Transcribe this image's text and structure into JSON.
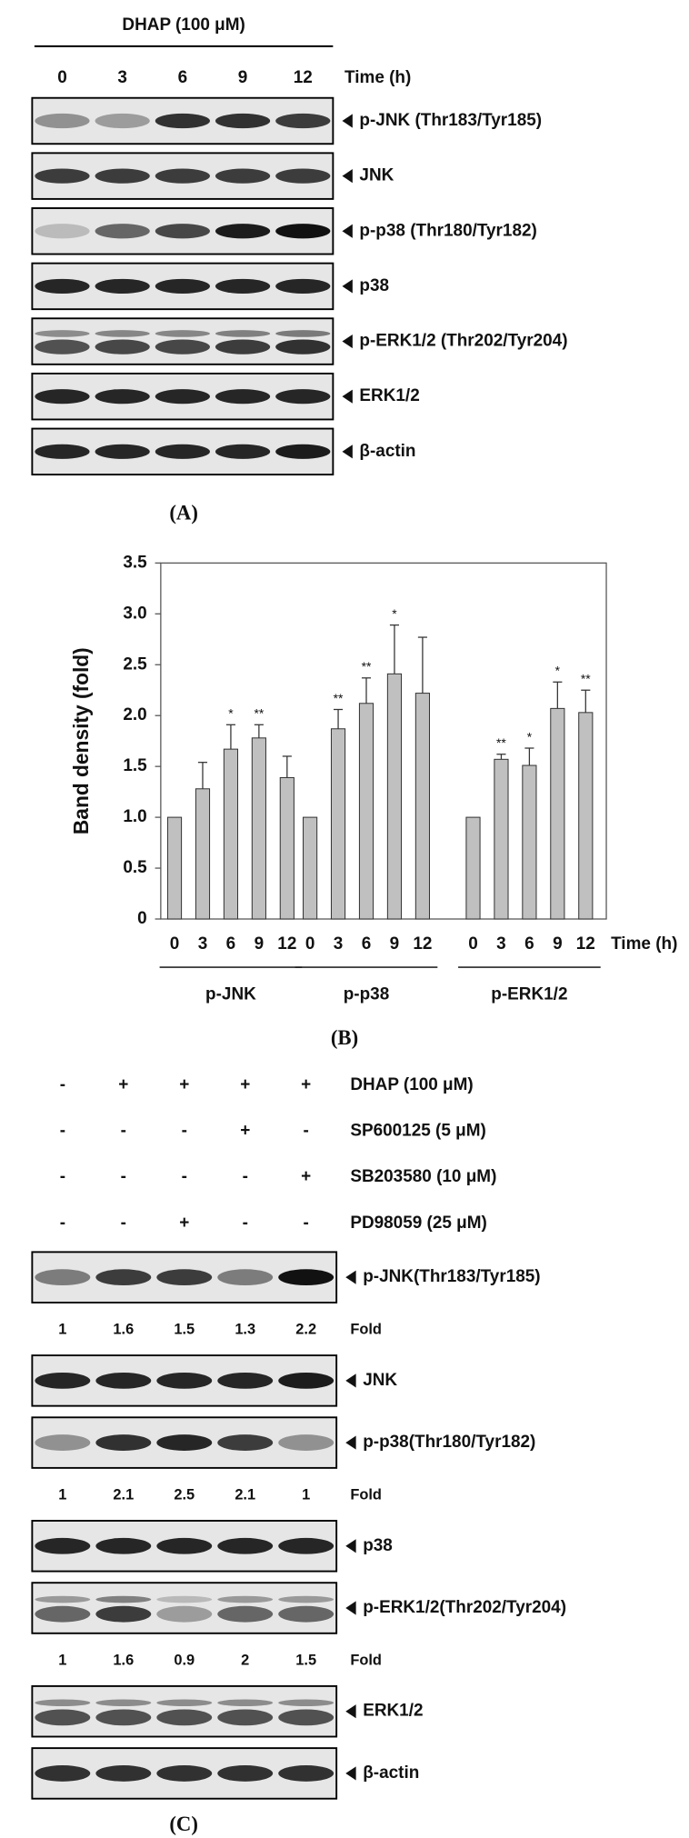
{
  "panel_a": {
    "treatment": "DHAP (100 μM)",
    "lanes": [
      "0",
      "3",
      "6",
      "9",
      "12"
    ],
    "lane_axis_label": "Time (h)",
    "blots": [
      "p-JNK (Thr183/Tyr185)",
      "JNK",
      "p-p38 (Thr180/Tyr182)",
      "p38",
      "p-ERK1/2 (Thr202/Tyr204)",
      "ERK1/2",
      "β-actin"
    ],
    "panel_label": "(A)"
  },
  "chart_data": {
    "type": "bar",
    "ylabel": "Band density (fold)",
    "categories": [
      "0",
      "3",
      "6",
      "9",
      "12"
    ],
    "xlabel": "Time (h)",
    "ylim": [
      0,
      3.5
    ],
    "yticks": [
      0,
      0.5,
      {
        "value": 1,
        "label": "1.0"
      },
      1.5,
      {
        "value": 2,
        "label": "2.0"
      },
      2.5,
      {
        "value": 3,
        "label": "3.0"
      },
      3.5
    ],
    "color": "#c0c0c0",
    "groups": [
      {
        "name": "p-JNK",
        "values": [
          1.0,
          1.28,
          1.67,
          1.78,
          1.39
        ],
        "errors": [
          0,
          0.26,
          0.24,
          0.13,
          0.21
        ],
        "significance": [
          null,
          null,
          "*",
          "**",
          null
        ]
      },
      {
        "name": "p-p38",
        "values": [
          1.0,
          1.87,
          2.12,
          2.41,
          2.22
        ],
        "errors": [
          0,
          0.19,
          0.25,
          0.48,
          0.55
        ],
        "significance": [
          null,
          "**",
          "**",
          "*",
          null
        ]
      },
      {
        "name": "p-ERK1/2",
        "values": [
          1.0,
          1.57,
          1.51,
          2.07,
          2.03
        ],
        "errors": [
          0,
          0.05,
          0.17,
          0.26,
          0.22
        ],
        "significance": [
          null,
          "**",
          "*",
          "*",
          "**"
        ]
      }
    ],
    "panel_label": "(B)"
  },
  "panel_c": {
    "treatments": [
      {
        "label": "DHAP (100 μM)",
        "lanes": [
          "-",
          "+",
          "+",
          "+",
          "+"
        ]
      },
      {
        "label": "SP600125 (5 μM)",
        "lanes": [
          "-",
          "-",
          "-",
          "+",
          "-"
        ]
      },
      {
        "label": "SB203580 (10 μM)",
        "lanes": [
          "-",
          "-",
          "-",
          "-",
          "+"
        ]
      },
      {
        "label": "PD98059 (25 μM)",
        "lanes": [
          "-",
          "-",
          "+",
          "-",
          "-"
        ]
      }
    ],
    "blots": [
      {
        "label": "p-JNK(Thr183/Tyr185)",
        "fold": [
          1,
          1.6,
          1.5,
          1.3,
          2.2
        ]
      },
      {
        "label": "JNK"
      },
      {
        "label": "p-p38(Thr180/Tyr182)",
        "fold": [
          1,
          2.1,
          2.5,
          2.1,
          1
        ]
      },
      {
        "label": "p38"
      },
      {
        "label": "p-ERK1/2(Thr202/Tyr204)",
        "fold": [
          1,
          1.6,
          0.9,
          2,
          1.5
        ]
      },
      {
        "label": "ERK1/2"
      },
      {
        "label": "β-actin"
      }
    ],
    "fold_label": "Fold",
    "panel_label": "(C)"
  }
}
